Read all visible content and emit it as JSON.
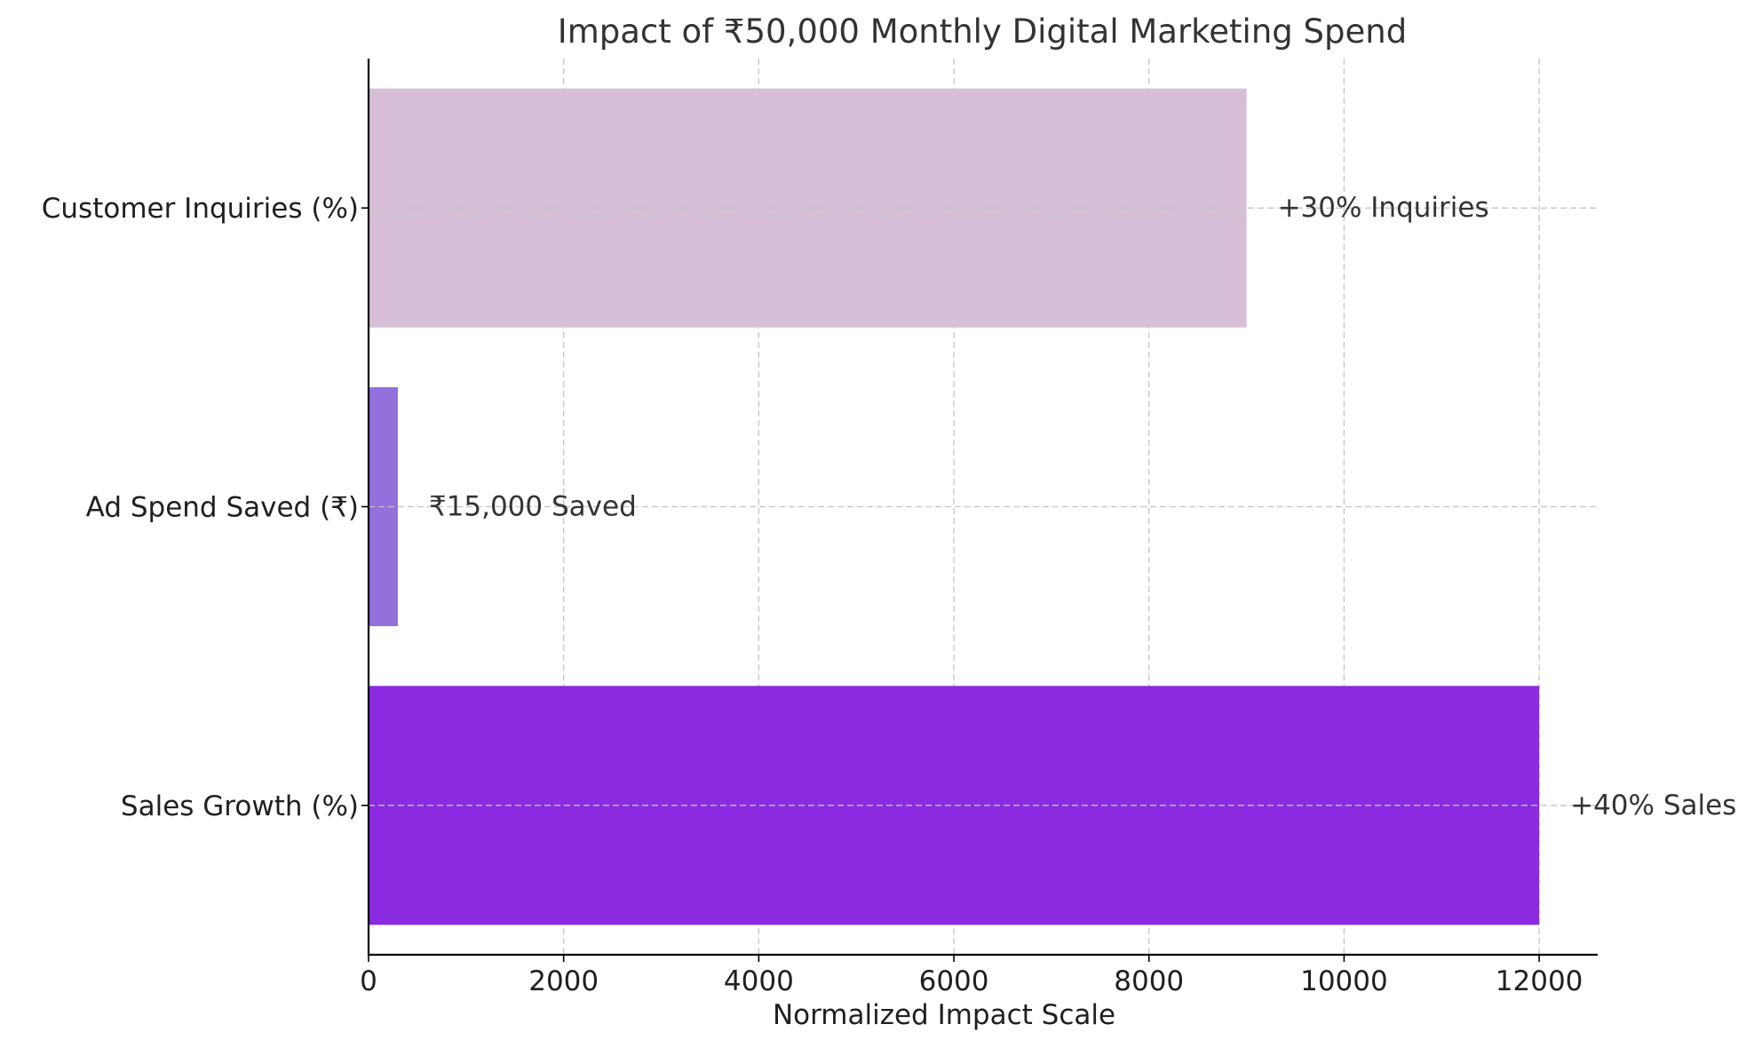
{
  "chart_data": {
    "type": "bar",
    "orientation": "horizontal",
    "title": "Impact of ₹50,000 Monthly Digital Marketing Spend",
    "xlabel": "Normalized Impact Scale",
    "ylabel": "",
    "xlim": [
      0,
      12600
    ],
    "xticks": [
      0,
      2000,
      4000,
      6000,
      8000,
      10000,
      12000
    ],
    "xtick_labels": [
      "0",
      "2000",
      "4000",
      "6000",
      "8000",
      "10000",
      "12000"
    ],
    "grid": true,
    "categories": [
      "Sales Growth (%)",
      "Ad Spend Saved (₹)",
      "Customer Inquiries (%)"
    ],
    "values": [
      12000,
      300,
      9000
    ],
    "colors": [
      "#8a2be2",
      "#9370db",
      "#d8bfd8"
    ],
    "data_labels": [
      "+40% Sales",
      "₹15,000 Saved",
      "+30% Inquiries"
    ]
  }
}
